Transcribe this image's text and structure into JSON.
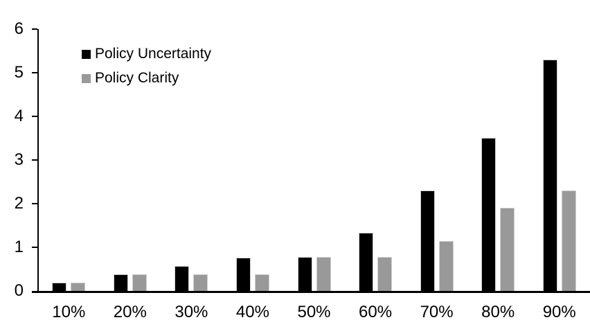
{
  "chart_data": {
    "type": "bar",
    "title": "",
    "xlabel": "",
    "ylabel": "",
    "categories": [
      "10%",
      "20%",
      "30%",
      "40%",
      "50%",
      "60%",
      "70%",
      "80%",
      "90%"
    ],
    "series": [
      {
        "name": "Policy Uncertainty",
        "color": "#000000",
        "values": [
          0.19,
          0.38,
          0.57,
          0.76,
          0.78,
          1.33,
          2.3,
          3.5,
          5.3
        ]
      },
      {
        "name": "Policy Clarity",
        "color": "#999999",
        "values": [
          0.19,
          0.38,
          0.38,
          0.38,
          0.77,
          0.77,
          1.15,
          1.9,
          2.3
        ]
      }
    ],
    "ylim": [
      0,
      6
    ],
    "yticks": [
      0,
      1,
      2,
      3,
      4,
      5,
      6
    ],
    "grid": false,
    "legend_position": "inside-top-left",
    "axis_color": "#000000",
    "background_color": "#ffffff"
  }
}
